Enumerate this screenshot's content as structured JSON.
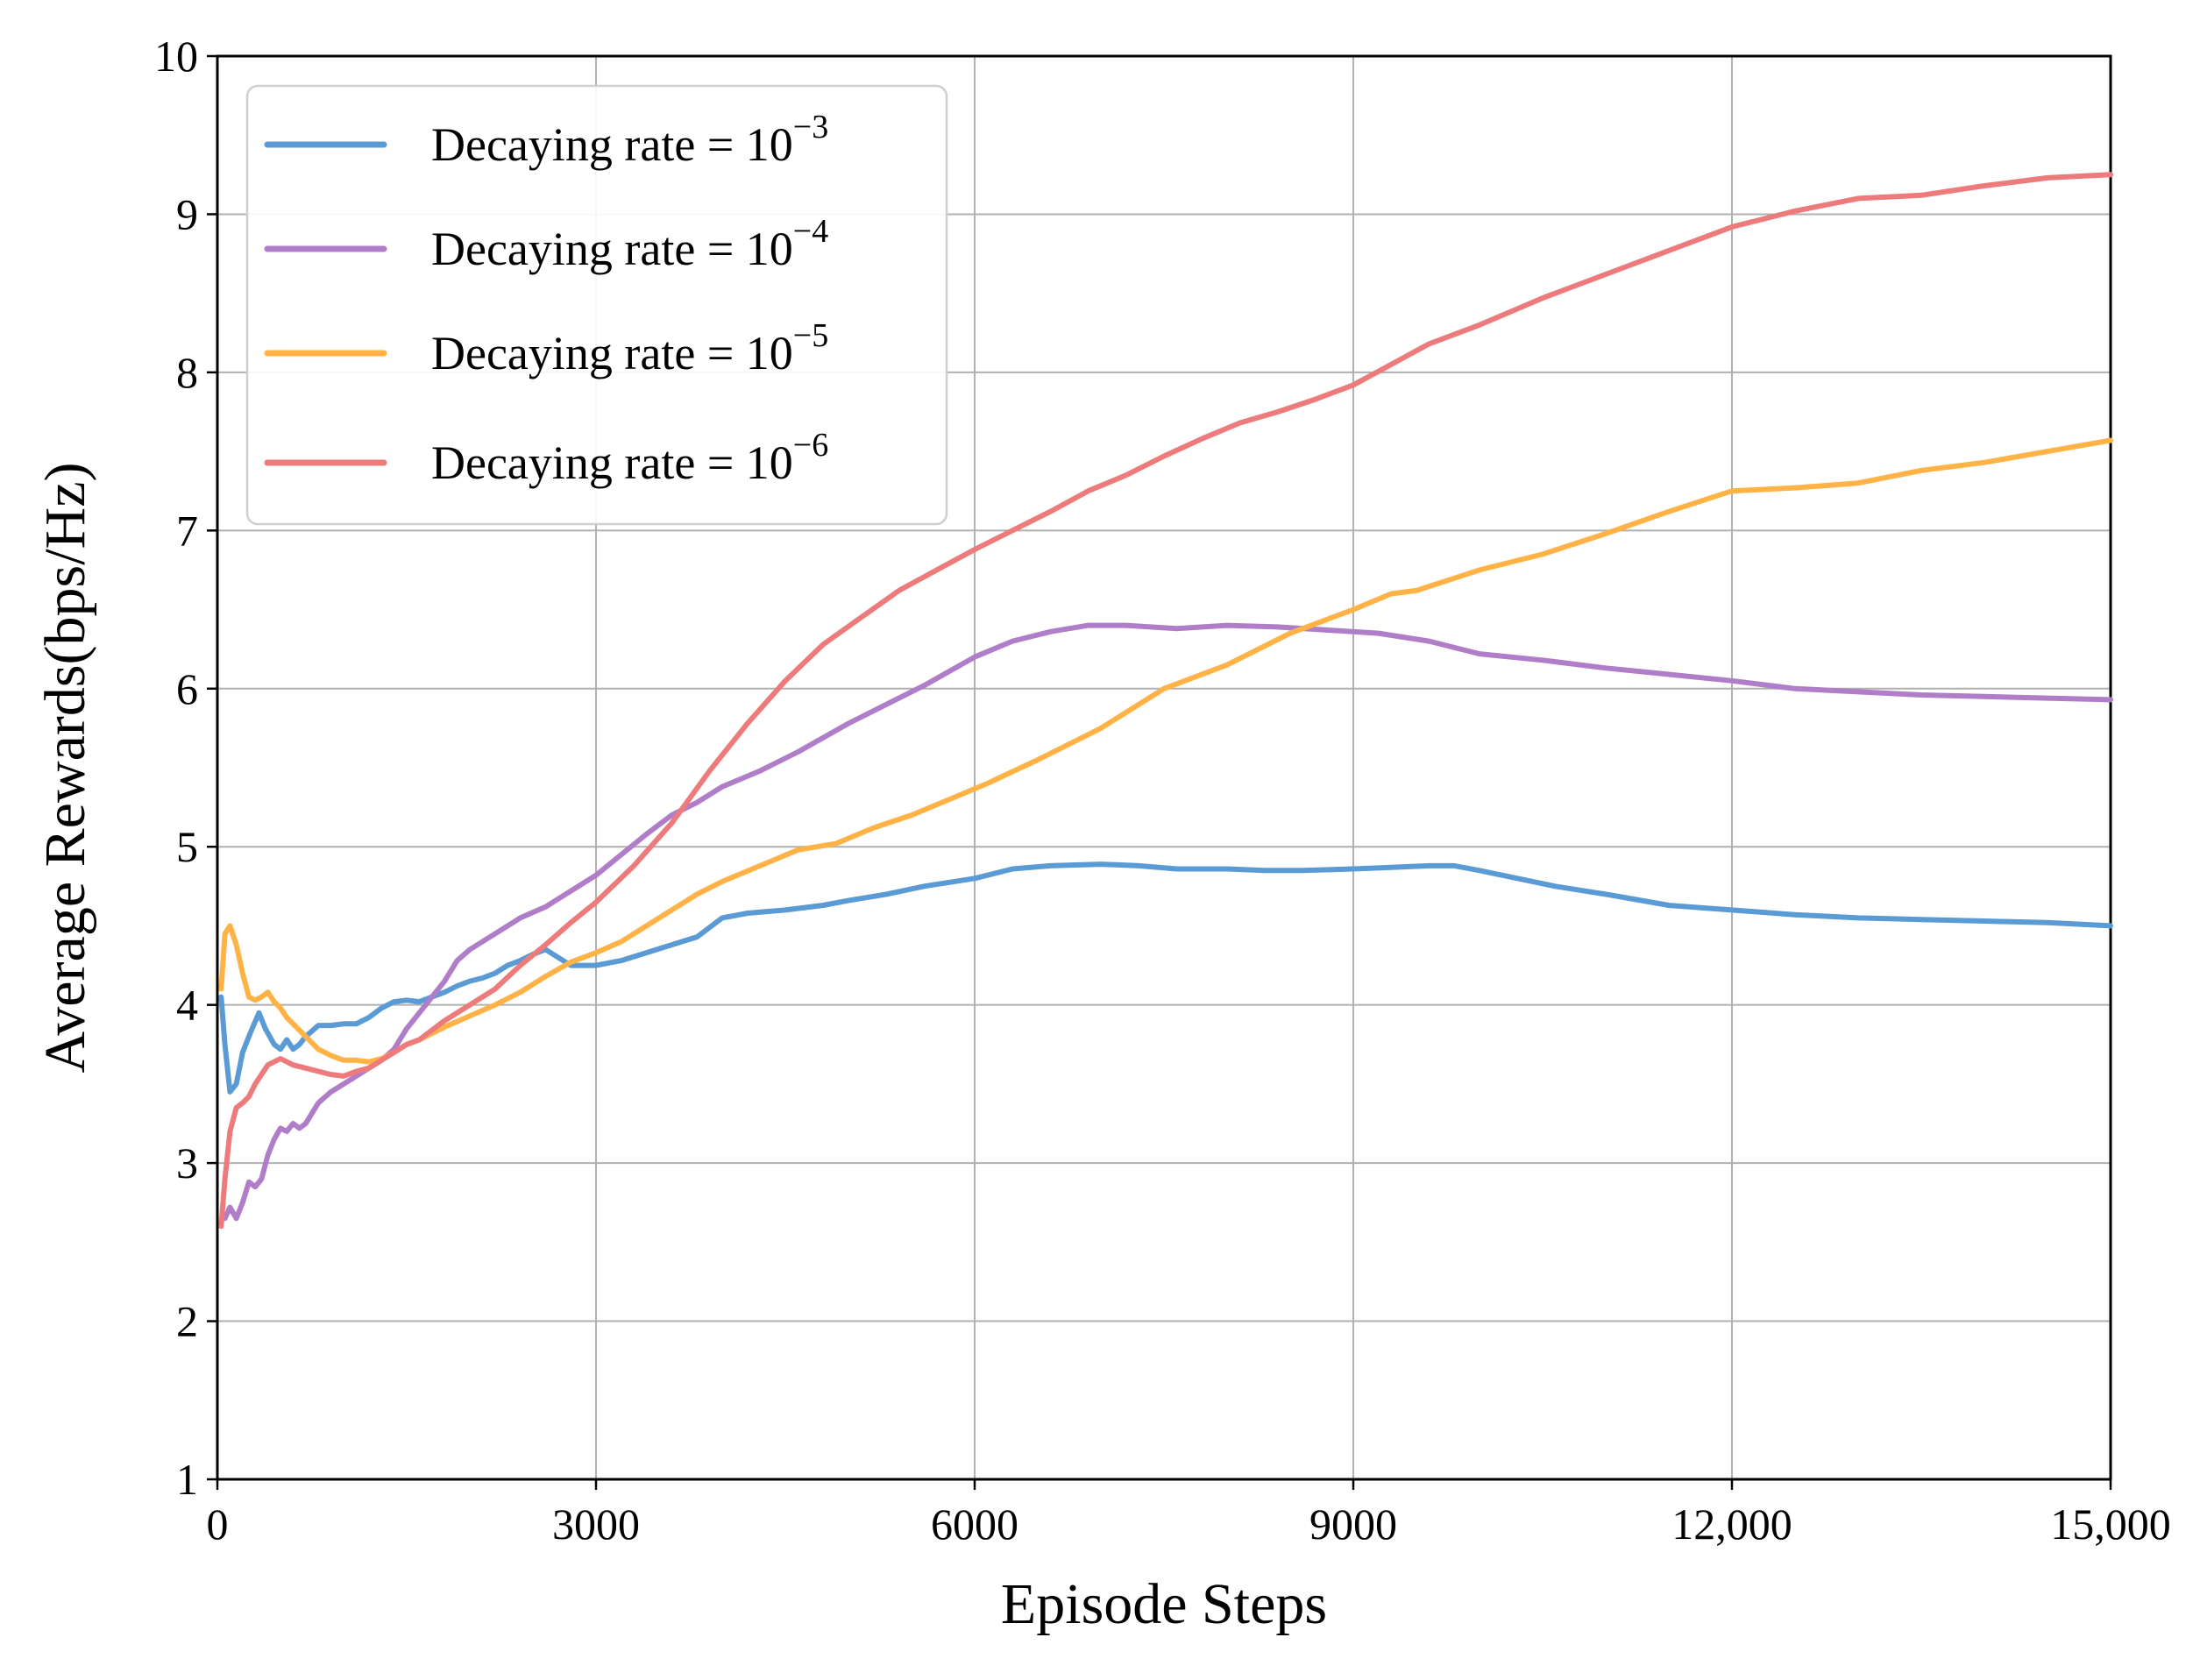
{
  "chart_data": {
    "type": "line",
    "title": "",
    "xlabel": "Episode Steps",
    "ylabel": "Average Rewards(bps/Hz)",
    "xlim": [
      0,
      15000
    ],
    "ylim": [
      1,
      10
    ],
    "grid": true,
    "legend_position": "top-left",
    "x_ticks": [
      0,
      3000,
      6000,
      9000,
      12000,
      15000
    ],
    "x_tick_labels": [
      "0",
      "3000",
      "6000",
      "9000",
      "12,000",
      "15,000"
    ],
    "y_ticks": [
      1,
      2,
      3,
      4,
      5,
      6,
      7,
      8,
      9,
      10
    ],
    "y_tick_labels": [
      "1",
      "2",
      "3",
      "4",
      "5",
      "6",
      "7",
      "8",
      "9",
      "10"
    ],
    "series": [
      {
        "name": "Decaying rate = 10^-3",
        "legend_base": "Decaying rate = 10",
        "legend_exp": "−3",
        "color": "#5b9bd5",
        "x": [
          30,
          60,
          100,
          150,
          200,
          260,
          330,
          380,
          450,
          500,
          550,
          600,
          650,
          700,
          800,
          900,
          1000,
          1100,
          1200,
          1300,
          1400,
          1500,
          1600,
          1700,
          1800,
          1900,
          2000,
          2100,
          2200,
          2300,
          2400,
          2500,
          2600,
          2700,
          2800,
          3000,
          3200,
          3400,
          3600,
          3800,
          4000,
          4200,
          4500,
          4800,
          5000,
          5300,
          5600,
          6000,
          6300,
          6600,
          7000,
          7300,
          7600,
          8000,
          8300,
          8600,
          9000,
          9300,
          9600,
          9800,
          10000,
          10300,
          10600,
          11000,
          11500,
          12000,
          12500,
          13000,
          13500,
          14000,
          14500,
          15000
        ],
        "values": [
          4.05,
          3.75,
          3.45,
          3.5,
          3.7,
          3.82,
          3.95,
          3.85,
          3.75,
          3.72,
          3.78,
          3.72,
          3.75,
          3.8,
          3.87,
          3.87,
          3.88,
          3.88,
          3.92,
          3.98,
          4.02,
          4.03,
          4.02,
          4.05,
          4.08,
          4.12,
          4.15,
          4.17,
          4.2,
          4.25,
          4.28,
          4.32,
          4.35,
          4.3,
          4.25,
          4.25,
          4.28,
          4.33,
          4.38,
          4.43,
          4.55,
          4.58,
          4.6,
          4.63,
          4.66,
          4.7,
          4.75,
          4.8,
          4.86,
          4.88,
          4.89,
          4.88,
          4.86,
          4.86,
          4.85,
          4.85,
          4.86,
          4.87,
          4.88,
          4.88,
          4.85,
          4.8,
          4.75,
          4.7,
          4.63,
          4.6,
          4.57,
          4.55,
          4.54,
          4.53,
          4.52,
          4.5
        ]
      },
      {
        "name": "Decaying rate = 10^-4",
        "legend_base": "Decaying rate = 10",
        "legend_exp": "−4",
        "color": "#b07ec8",
        "x": [
          60,
          100,
          150,
          200,
          250,
          300,
          350,
          400,
          450,
          500,
          550,
          600,
          650,
          700,
          800,
          900,
          1000,
          1100,
          1200,
          1300,
          1400,
          1500,
          1600,
          1700,
          1800,
          1900,
          2000,
          2200,
          2400,
          2600,
          2800,
          3000,
          3200,
          3400,
          3600,
          3800,
          4000,
          4300,
          4600,
          5000,
          5300,
          5600,
          6000,
          6300,
          6600,
          6900,
          7200,
          7600,
          8000,
          8400,
          8800,
          9200,
          9600,
          10000,
          10500,
          11000,
          11500,
          12000,
          12500,
          13000,
          13500,
          14000,
          14500,
          15000
        ],
        "values": [
          2.65,
          2.72,
          2.65,
          2.75,
          2.88,
          2.85,
          2.9,
          3.05,
          3.15,
          3.22,
          3.2,
          3.25,
          3.22,
          3.25,
          3.38,
          3.45,
          3.5,
          3.55,
          3.6,
          3.65,
          3.72,
          3.85,
          3.95,
          4.05,
          4.15,
          4.28,
          4.35,
          4.45,
          4.55,
          4.62,
          4.72,
          4.82,
          4.95,
          5.08,
          5.2,
          5.28,
          5.38,
          5.48,
          5.6,
          5.78,
          5.9,
          6.02,
          6.2,
          6.3,
          6.36,
          6.4,
          6.4,
          6.38,
          6.4,
          6.39,
          6.37,
          6.35,
          6.3,
          6.22,
          6.18,
          6.13,
          6.09,
          6.05,
          6.0,
          5.98,
          5.96,
          5.95,
          5.94,
          5.93
        ]
      },
      {
        "name": "Decaying rate = 10^-5",
        "legend_base": "Decaying rate = 10",
        "legend_exp": "−5",
        "color": "#ffb347",
        "x": [
          30,
          60,
          100,
          150,
          200,
          250,
          300,
          350,
          400,
          450,
          500,
          550,
          600,
          700,
          800,
          900,
          1000,
          1100,
          1200,
          1300,
          1400,
          1500,
          1600,
          1800,
          2000,
          2200,
          2400,
          2600,
          2800,
          3000,
          3200,
          3400,
          3600,
          3800,
          4000,
          4300,
          4600,
          4900,
          5200,
          5500,
          5800,
          6100,
          6500,
          7000,
          7500,
          8000,
          8500,
          9000,
          9300,
          9500,
          10000,
          10500,
          11000,
          11500,
          12000,
          12500,
          13000,
          13500,
          14000,
          14500,
          15000
        ],
        "values": [
          4.1,
          4.45,
          4.5,
          4.38,
          4.2,
          4.05,
          4.03,
          4.05,
          4.08,
          4.02,
          3.98,
          3.92,
          3.88,
          3.8,
          3.72,
          3.68,
          3.65,
          3.65,
          3.64,
          3.66,
          3.7,
          3.75,
          3.78,
          3.86,
          3.93,
          4.0,
          4.08,
          4.18,
          4.27,
          4.33,
          4.4,
          4.5,
          4.6,
          4.7,
          4.78,
          4.88,
          4.98,
          5.02,
          5.12,
          5.2,
          5.3,
          5.4,
          5.55,
          5.75,
          6.0,
          6.15,
          6.35,
          6.5,
          6.6,
          6.62,
          6.75,
          6.85,
          6.98,
          7.12,
          7.25,
          7.27,
          7.3,
          7.38,
          7.43,
          7.5,
          7.57
        ]
      },
      {
        "name": "Decaying rate = 10^-6",
        "legend_base": "Decaying rate = 10",
        "legend_exp": "−6",
        "color": "#ee7b7b",
        "x": [
          30,
          60,
          100,
          150,
          200,
          250,
          300,
          400,
          500,
          600,
          700,
          800,
          900,
          1000,
          1100,
          1200,
          1300,
          1400,
          1500,
          1600,
          1800,
          2000,
          2200,
          2400,
          2600,
          2800,
          3000,
          3300,
          3600,
          3900,
          4200,
          4500,
          4800,
          5100,
          5400,
          5700,
          6000,
          6300,
          6600,
          6900,
          7200,
          7500,
          7800,
          8100,
          8400,
          8700,
          9000,
          9300,
          9600,
          10000,
          10500,
          11000,
          11500,
          12000,
          12500,
          13000,
          13500,
          14000,
          14500,
          15000
        ],
        "values": [
          2.6,
          2.9,
          3.2,
          3.35,
          3.38,
          3.42,
          3.5,
          3.62,
          3.66,
          3.62,
          3.6,
          3.58,
          3.56,
          3.55,
          3.58,
          3.6,
          3.65,
          3.7,
          3.75,
          3.78,
          3.9,
          4.0,
          4.1,
          4.25,
          4.38,
          4.52,
          4.65,
          4.88,
          5.15,
          5.48,
          5.78,
          6.05,
          6.28,
          6.45,
          6.62,
          6.75,
          6.88,
          7.0,
          7.12,
          7.25,
          7.35,
          7.47,
          7.58,
          7.68,
          7.75,
          7.83,
          7.92,
          8.05,
          8.18,
          8.3,
          8.47,
          8.62,
          8.77,
          8.92,
          9.02,
          9.1,
          9.12,
          9.18,
          9.23,
          9.25
        ]
      }
    ]
  }
}
